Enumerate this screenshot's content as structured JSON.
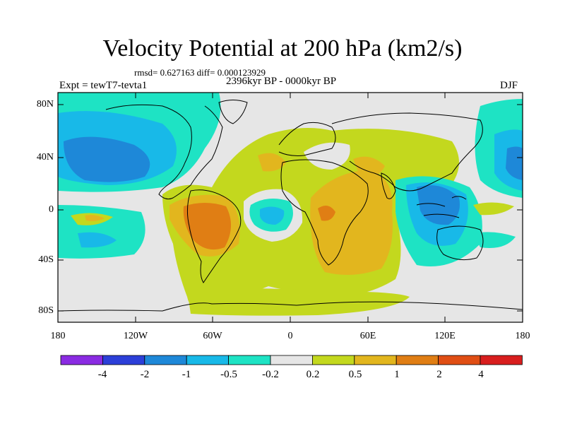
{
  "title": "Velocity Potential at 200 hPa (km2/s)",
  "stats_line": "rmsd= 0.627163 diff= 0.000123929",
  "period_line": "2396kyr BP - 0000kyr BP",
  "experiment_label": "Expt = tewT7-tevta1",
  "season_label": "DJF",
  "lat_labels": [
    "80N",
    "40N",
    "0",
    "40S",
    "80S"
  ],
  "lon_labels": [
    "180",
    "120W",
    "60W",
    "0",
    "60E",
    "120E",
    "180"
  ],
  "colorbar": {
    "labels": [
      "-4",
      "-2",
      "-1",
      "-0.5",
      "-0.2",
      "0.2",
      "0.5",
      "1",
      "2",
      "4"
    ],
    "colors": [
      "#8a2be2",
      "#2c3fd8",
      "#1e88d8",
      "#18b9e8",
      "#1ee3c4",
      "#e6e6e6",
      "#c3d81e",
      "#e2b61e",
      "#e07e14",
      "#e04e14",
      "#d81e1e"
    ]
  },
  "map_colors": {
    "neutral": "#e6e6e6",
    "neg_light": "#1ee3c4",
    "neg_mid": "#18b9e8",
    "neg_strong": "#1e88d8",
    "pos_light": "#c3d81e",
    "pos_mid": "#e2b61e",
    "pos_strong": "#e07e14"
  }
}
